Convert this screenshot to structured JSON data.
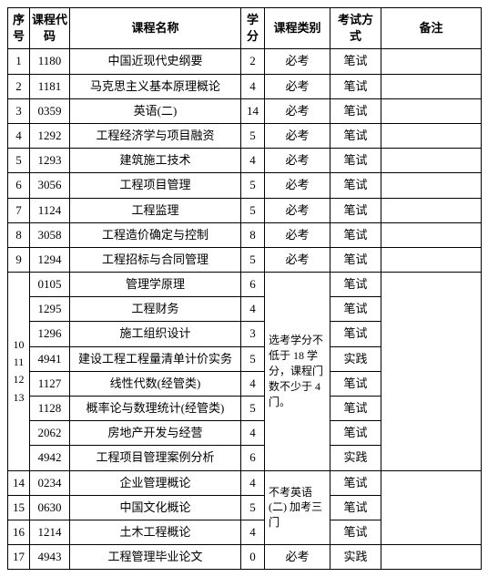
{
  "headers": {
    "idx": "序号",
    "code": "课程代码",
    "name": "课程名称",
    "credit": "学分",
    "type": "课程类别",
    "exam": "考试方式",
    "note": "备注"
  },
  "rows": [
    {
      "idx": "1",
      "code": "1180",
      "name": "中国近现代史纲要",
      "credit": "2",
      "type": "必考",
      "exam": "笔试",
      "note": ""
    },
    {
      "idx": "2",
      "code": "1181",
      "name": "马克思主义基本原理概论",
      "credit": "4",
      "type": "必考",
      "exam": "笔试",
      "note": ""
    },
    {
      "idx": "3",
      "code": "0359",
      "name": "英语(二)",
      "credit": "14",
      "type": "必考",
      "exam": "笔试",
      "note": ""
    },
    {
      "idx": "4",
      "code": "1292",
      "name": "工程经济学与项目融资",
      "credit": "5",
      "type": "必考",
      "exam": "笔试",
      "note": ""
    },
    {
      "idx": "5",
      "code": "1293",
      "name": "建筑施工技术",
      "credit": "4",
      "type": "必考",
      "exam": "笔试",
      "note": ""
    },
    {
      "idx": "6",
      "code": "3056",
      "name": "工程项目管理",
      "credit": "5",
      "type": "必考",
      "exam": "笔试",
      "note": ""
    },
    {
      "idx": "7",
      "code": "1124",
      "name": "工程监理",
      "credit": "5",
      "type": "必考",
      "exam": "笔试",
      "note": ""
    },
    {
      "idx": "8",
      "code": "3058",
      "name": "工程造价确定与控制",
      "credit": "8",
      "type": "必考",
      "exam": "笔试",
      "note": ""
    },
    {
      "idx": "9",
      "code": "1294",
      "name": "工程招标与合同管理",
      "credit": "5",
      "type": "必考",
      "exam": "笔试",
      "note": ""
    }
  ],
  "group1": {
    "idx_merged": "10\n11\n12\n13",
    "type_merged": "选考学分不低于 18 学 分，课程门数不少于 4 门。",
    "rows": [
      {
        "code": "0105",
        "name": "管理学原理",
        "credit": "6",
        "exam": "笔试"
      },
      {
        "code": "1295",
        "name": "工程财务",
        "credit": "4",
        "exam": "笔试"
      },
      {
        "code": "1296",
        "name": "施工组织设计",
        "credit": "3",
        "exam": "笔试"
      },
      {
        "code": "4941",
        "name": "建设工程工程量清单计价实务",
        "credit": "5",
        "exam": "实践"
      },
      {
        "code": "1127",
        "name": "线性代数(经管类)",
        "credit": "4",
        "exam": "笔试"
      },
      {
        "code": "1128",
        "name": "概率论与数理统计(经管类)",
        "credit": "5",
        "exam": "笔试"
      },
      {
        "code": "2062",
        "name": "房地产开发与经营",
        "credit": "4",
        "exam": "笔试"
      },
      {
        "code": "4942",
        "name": "工程项目管理案例分析",
        "credit": "6",
        "exam": "实践"
      }
    ]
  },
  "group2": {
    "type_merged": "不考英语(二) 加考三门",
    "rows": [
      {
        "idx": "14",
        "code": "0234",
        "name": "企业管理概论",
        "credit": "4",
        "exam": "笔试"
      },
      {
        "idx": "15",
        "code": "0630",
        "name": "中国文化概论",
        "credit": "5",
        "exam": "笔试"
      },
      {
        "idx": "16",
        "code": "1214",
        "name": "土木工程概论",
        "credit": "4",
        "exam": "笔试"
      }
    ]
  },
  "final": {
    "idx": "17",
    "code": "4943",
    "name": "工程管理毕业论文",
    "credit": "0",
    "type": "必考",
    "exam": "实践",
    "note": ""
  }
}
